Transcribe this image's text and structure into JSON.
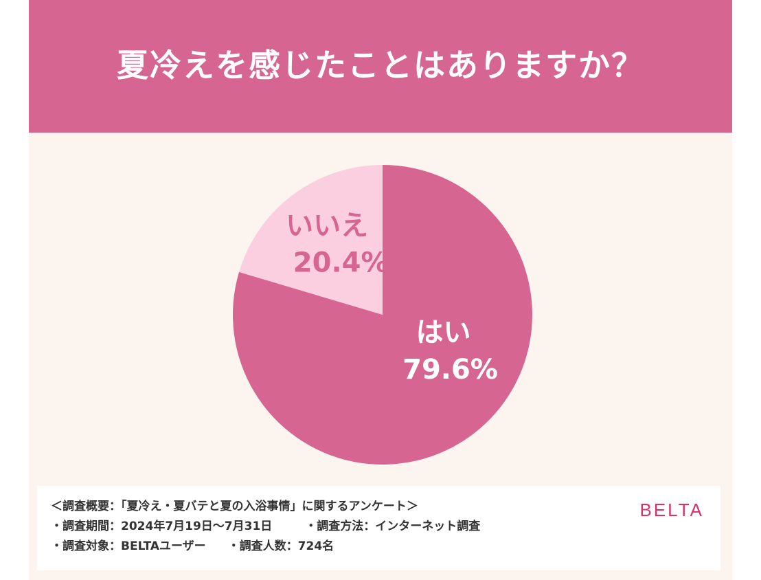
{
  "header": {
    "title": "夏冷えを感じたことはありますか？"
  },
  "colors": {
    "header_bg": "#d66591",
    "background": "#fcf4ee",
    "slice_yes": "#d66591",
    "slice_no": "#fbcfe0",
    "label_yes": "#ffffff",
    "label_no": "#d66591",
    "brand": "#d6336c"
  },
  "chart_data": {
    "type": "pie",
    "title": "夏冷えを感じたことはありますか？",
    "slices": [
      {
        "label": "はい",
        "value": 79.6,
        "value_label": "79.6%"
      },
      {
        "label": "いいえ",
        "value": 20.4,
        "value_label": "20.4%"
      }
    ],
    "start": "12 o'clock",
    "direction": "clockwise"
  },
  "survey": {
    "overview": "＜調査概要：「夏冷え・夏バテと夏の入浴事情」に関するアンケート＞",
    "period": "・調査期間：2024年7月19日〜7月31日",
    "method": "・調査方法：インターネット調査",
    "target": "・調査対象：BELTAユーザー",
    "count": "・調査人数：724名"
  },
  "brand": {
    "logo": "BELTA"
  }
}
